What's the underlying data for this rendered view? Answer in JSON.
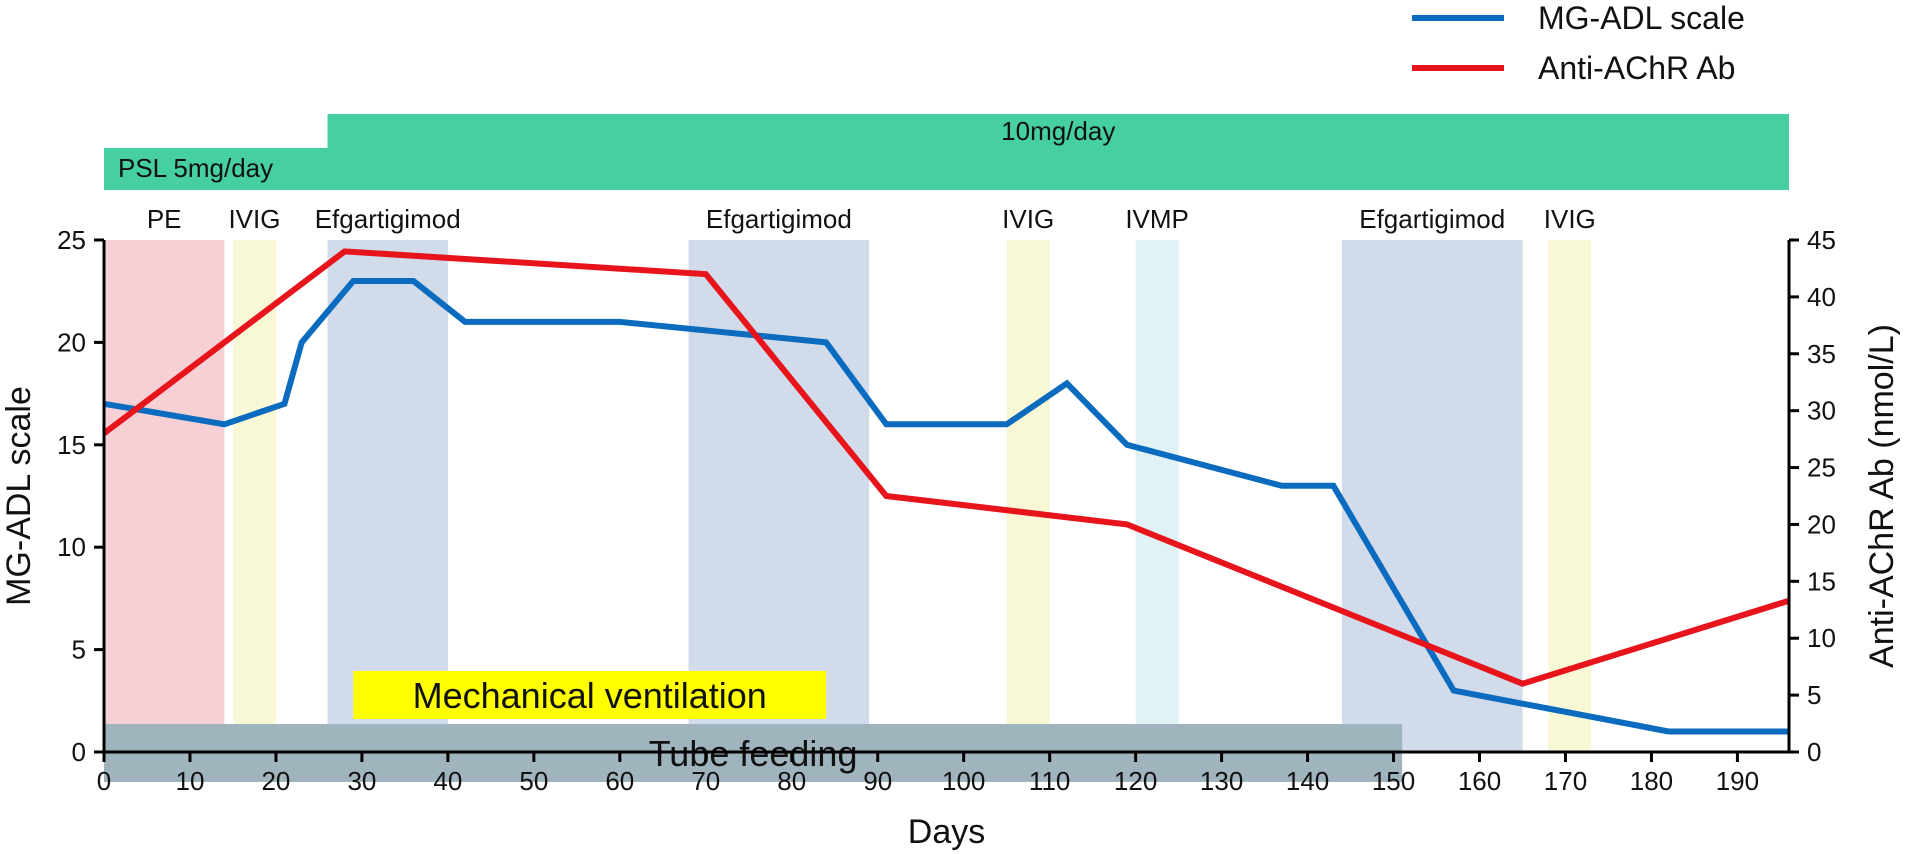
{
  "chart_data": {
    "type": "line",
    "xlabel": "Days",
    "ylabel_left": "MG-ADL scale",
    "ylabel_right": "Anti-AChR Ab (nmol/L)",
    "x_range": [
      0,
      196
    ],
    "x_ticks": [
      0,
      10,
      20,
      30,
      40,
      50,
      60,
      70,
      80,
      90,
      100,
      110,
      120,
      130,
      140,
      150,
      160,
      170,
      180,
      190
    ],
    "y_left_range": [
      0,
      25
    ],
    "y_left_ticks": [
      0,
      5,
      10,
      15,
      20,
      25
    ],
    "y_right_range": [
      0,
      45
    ],
    "y_right_ticks": [
      0,
      5,
      10,
      15,
      20,
      25,
      30,
      35,
      40,
      45
    ],
    "grid": false,
    "legend": {
      "position": "top-right"
    },
    "series": [
      {
        "name": "MG-ADL scale",
        "axis": "left",
        "color": "#0a6bbf",
        "points": [
          [
            0,
            17
          ],
          [
            14,
            16
          ],
          [
            21,
            17
          ],
          [
            23,
            20
          ],
          [
            29,
            23
          ],
          [
            36,
            23
          ],
          [
            42,
            21
          ],
          [
            60,
            21
          ],
          [
            84,
            20
          ],
          [
            91,
            16
          ],
          [
            105,
            16
          ],
          [
            112,
            18
          ],
          [
            119,
            15
          ],
          [
            137,
            13
          ],
          [
            143,
            13
          ],
          [
            157,
            3
          ],
          [
            182,
            1
          ],
          [
            196,
            1
          ]
        ]
      },
      {
        "name": "Anti-AChR Ab",
        "axis": "right",
        "color": "#e8141c",
        "points": [
          [
            0,
            28
          ],
          [
            28,
            44
          ],
          [
            70,
            42
          ],
          [
            91,
            22.5
          ],
          [
            119,
            20
          ],
          [
            165,
            6
          ],
          [
            196,
            13.3
          ]
        ]
      }
    ],
    "treatment_periods": [
      {
        "label": "PE",
        "start": 0,
        "end": 14,
        "color": "#f6d0d4"
      },
      {
        "label": "IVIG",
        "start": 15,
        "end": 20,
        "color": "#f8f8d6"
      },
      {
        "label": "Efgartigimod",
        "start": 26,
        "end": 40,
        "color": "#d1dbea"
      },
      {
        "label": "Efgartigimod",
        "start": 68,
        "end": 89,
        "color": "#d1dbea"
      },
      {
        "label": "IVIG",
        "start": 105,
        "end": 110,
        "color": "#f8f8d6"
      },
      {
        "label": "IVMP",
        "start": 120,
        "end": 125,
        "color": "#e0f2f4"
      },
      {
        "label": "Efgartigimod",
        "start": 144,
        "end": 165,
        "color": "#d1dbea"
      },
      {
        "label": "IVIG",
        "start": 168,
        "end": 173,
        "color": "#f8f8d6"
      }
    ],
    "psl_doses": [
      {
        "label": "PSL 5mg/day",
        "start": 0,
        "end": 26
      },
      {
        "label": "10mg/day",
        "start": 26,
        "end": 196
      }
    ],
    "psl_color": "#45cfa2",
    "support_bars": [
      {
        "label": "Mechanical ventilation",
        "start": 29,
        "end": 84,
        "color": "#ffff00"
      },
      {
        "label": "Tube feeding",
        "start": 0,
        "end": 151,
        "color": "#a0b4bd"
      }
    ]
  }
}
